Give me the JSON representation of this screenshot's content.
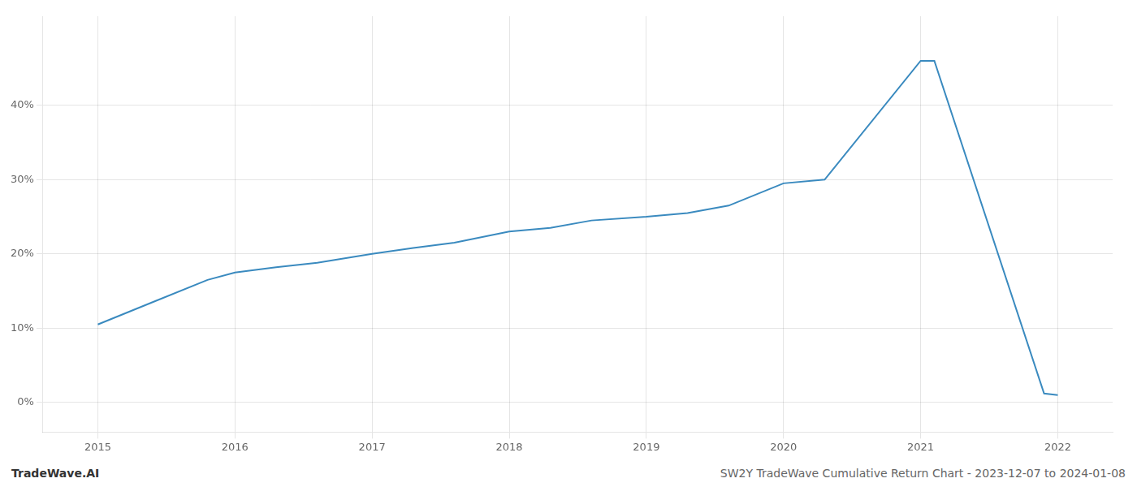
{
  "chart_data": {
    "type": "line",
    "x": [
      2015.0,
      2015.4,
      2015.8,
      2016.0,
      2016.3,
      2016.6,
      2017.0,
      2017.3,
      2017.6,
      2018.0,
      2018.3,
      2018.6,
      2019.0,
      2019.3,
      2019.6,
      2020.0,
      2020.3,
      2021.0,
      2021.1,
      2021.9,
      2022.0
    ],
    "values": [
      10.5,
      13.5,
      16.5,
      17.5,
      18.2,
      18.8,
      20.0,
      20.8,
      21.5,
      23.0,
      23.5,
      24.5,
      25.0,
      25.5,
      26.5,
      29.5,
      30.0,
      46.0,
      46.0,
      1.2,
      1.0
    ],
    "color": "#3a8abf",
    "xlim": [
      2014.6,
      2022.4
    ],
    "xticks": [
      2015,
      2016,
      2017,
      2018,
      2019,
      2020,
      2021,
      2022
    ],
    "ylim": [
      -4,
      52
    ],
    "yticks": [
      {
        "value": 0,
        "label": "0%"
      },
      {
        "value": 10,
        "label": "10%"
      },
      {
        "value": 20,
        "label": "20%"
      },
      {
        "value": 30,
        "label": "30%"
      },
      {
        "value": 40,
        "label": "40%"
      }
    ],
    "grid": true,
    "annotations": [
      "TradeWave.AI",
      "SW2Y TradeWave Cumulative Return Chart - 2023-12-07 to 2024-01-08"
    ]
  }
}
